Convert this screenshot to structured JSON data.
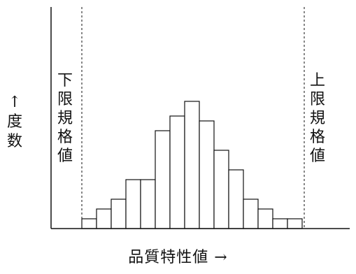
{
  "chart_data": {
    "type": "bar",
    "title": "",
    "xlabel": "品質特性値 →",
    "ylabel": "↑\n度\n数",
    "annotations": {
      "lower_spec": "下限規格値",
      "upper_spec": "上限規格値"
    },
    "values": [
      1,
      2,
      3,
      5,
      5,
      10,
      11.5,
      13,
      11,
      8,
      6,
      3,
      2,
      1,
      1
    ],
    "ylim": [
      0,
      16
    ],
    "grid": false,
    "legend": "none"
  },
  "labels": {
    "x_axis": "品質特性値 →",
    "y_axis": "↑\n度\n数",
    "lower_spec": "下限規格値",
    "upper_spec": "上限規格値"
  },
  "colors": {
    "bar_fill": "#ffffff",
    "bar_stroke": "#111111",
    "axis": "#111111"
  }
}
